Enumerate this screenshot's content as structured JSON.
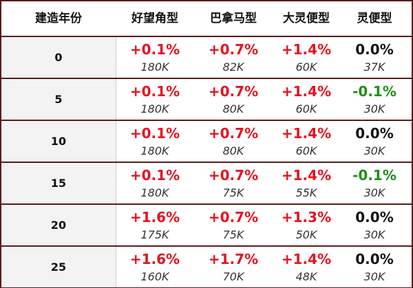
{
  "colors": {
    "up": "#e8101e",
    "down": "#1f8f12",
    "flat": "#111111",
    "border": "#5a1a1a"
  },
  "headers": [
    "建造年份",
    "好望角型",
    "巴拿马型",
    "大灵便型",
    "灵便型"
  ],
  "rows": [
    {
      "year": "0",
      "cells": [
        {
          "pct": "+0.1%",
          "cnt": "180K",
          "dir": "up"
        },
        {
          "pct": "+0.7%",
          "cnt": "82K",
          "dir": "up"
        },
        {
          "pct": "+1.4%",
          "cnt": "60K",
          "dir": "up"
        },
        {
          "pct": "0.0%",
          "cnt": "37K",
          "dir": "flat"
        }
      ]
    },
    {
      "year": "5",
      "cells": [
        {
          "pct": "+0.1%",
          "cnt": "180K",
          "dir": "up"
        },
        {
          "pct": "+0.7%",
          "cnt": "80K",
          "dir": "up"
        },
        {
          "pct": "+1.4%",
          "cnt": "60K",
          "dir": "up"
        },
        {
          "pct": "-0.1%",
          "cnt": "30K",
          "dir": "down"
        }
      ]
    },
    {
      "year": "10",
      "cells": [
        {
          "pct": "+0.1%",
          "cnt": "180K",
          "dir": "up"
        },
        {
          "pct": "+0.7%",
          "cnt": "80K",
          "dir": "up"
        },
        {
          "pct": "+1.4%",
          "cnt": "60K",
          "dir": "up"
        },
        {
          "pct": "0.0%",
          "cnt": "30K",
          "dir": "flat"
        }
      ]
    },
    {
      "year": "15",
      "cells": [
        {
          "pct": "+0.1%",
          "cnt": "180K",
          "dir": "up"
        },
        {
          "pct": "+0.7%",
          "cnt": "75K",
          "dir": "up"
        },
        {
          "pct": "+1.4%",
          "cnt": "55K",
          "dir": "up"
        },
        {
          "pct": "-0.1%",
          "cnt": "30K",
          "dir": "down"
        }
      ]
    },
    {
      "year": "20",
      "cells": [
        {
          "pct": "+1.6%",
          "cnt": "175K",
          "dir": "up"
        },
        {
          "pct": "+0.7%",
          "cnt": "75K",
          "dir": "up"
        },
        {
          "pct": "+1.3%",
          "cnt": "50K",
          "dir": "up"
        },
        {
          "pct": "0.0%",
          "cnt": "30K",
          "dir": "flat"
        }
      ]
    },
    {
      "year": "25",
      "cells": [
        {
          "pct": "+1.6%",
          "cnt": "160K",
          "dir": "up"
        },
        {
          "pct": "+1.7%",
          "cnt": "70K",
          "dir": "up"
        },
        {
          "pct": "+1.4%",
          "cnt": "48K",
          "dir": "up"
        },
        {
          "pct": "0.0%",
          "cnt": "30K",
          "dir": "flat"
        }
      ]
    }
  ]
}
